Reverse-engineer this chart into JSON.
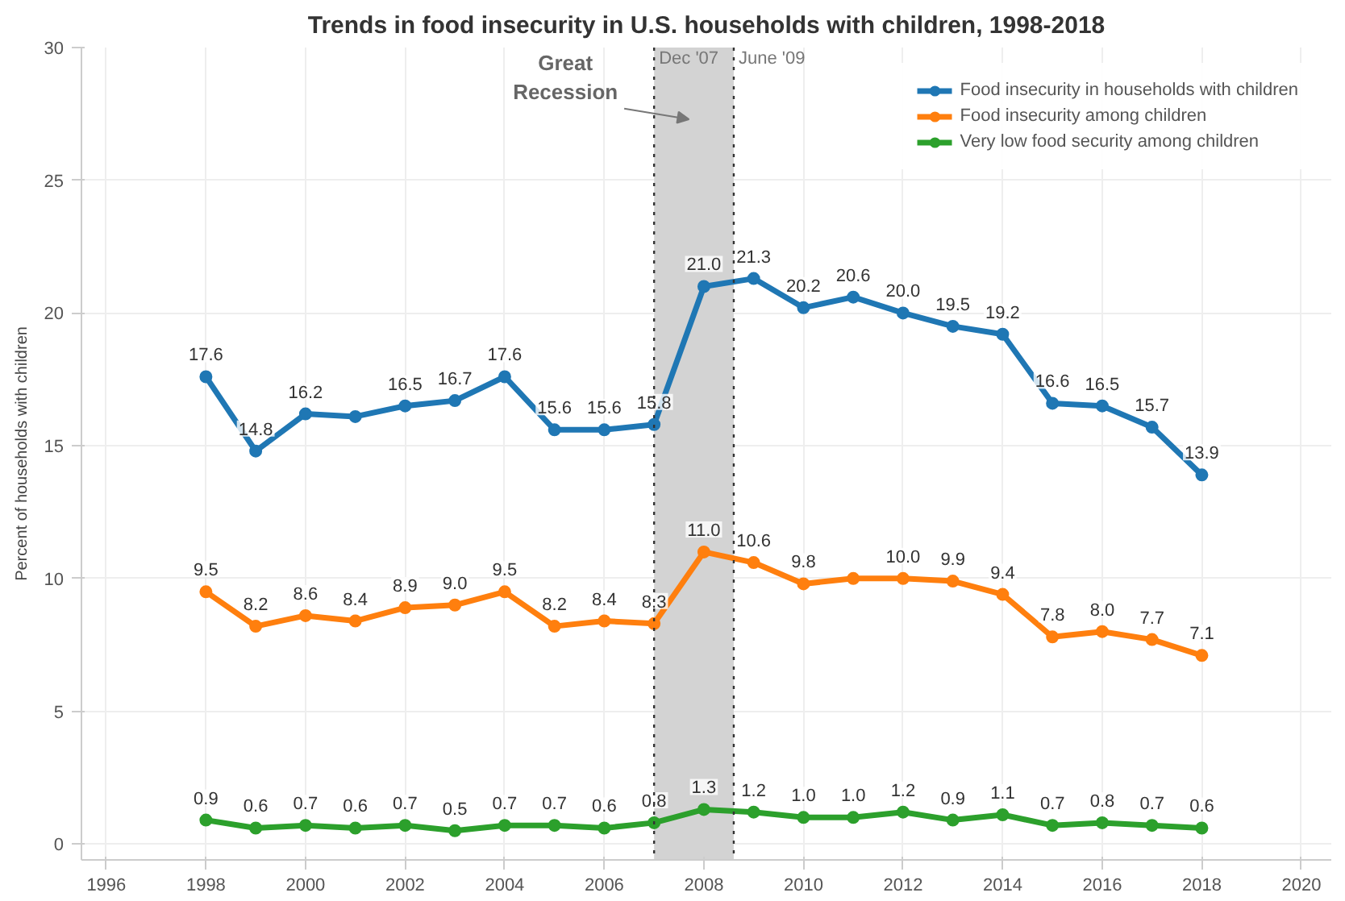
{
  "chart_data": {
    "type": "line",
    "title": "Trends in food insecurity in U.S. households with children, 1998-2018",
    "ylabel": "Percent of households with children",
    "x": [
      1998,
      1999,
      2000,
      2001,
      2002,
      2003,
      2004,
      2005,
      2006,
      2007,
      2008,
      2009,
      2010,
      2011,
      2012,
      2013,
      2014,
      2015,
      2016,
      2017,
      2018
    ],
    "series": [
      {
        "name": "Food insecurity in households with children",
        "color": "#1f77b4",
        "values": [
          17.6,
          14.8,
          16.2,
          16.1,
          16.5,
          16.7,
          17.6,
          15.6,
          15.6,
          15.8,
          21.0,
          21.3,
          20.2,
          20.6,
          20.0,
          19.5,
          19.2,
          16.6,
          16.5,
          15.7,
          13.9
        ],
        "value_labels": [
          "17.6",
          "14.8",
          "16.2",
          null,
          "16.5",
          "16.7",
          "17.6",
          "15.6",
          "15.6",
          "15.8",
          "21.0",
          "21.3",
          "20.2",
          "20.6",
          "20.0",
          "19.5",
          "19.2",
          "16.6",
          "16.5",
          "15.7",
          "13.9"
        ]
      },
      {
        "name": "Food insecurity among children",
        "color": "#ff7f0e",
        "values": [
          9.5,
          8.2,
          8.6,
          8.4,
          8.9,
          9.0,
          9.5,
          8.2,
          8.4,
          8.3,
          11.0,
          10.6,
          9.8,
          10.0,
          10.0,
          9.9,
          9.4,
          7.8,
          8.0,
          7.7,
          7.1
        ],
        "value_labels": [
          "9.5",
          "8.2",
          "8.6",
          "8.4",
          "8.9",
          "9.0",
          "9.5",
          "8.2",
          "8.4",
          "8.3",
          "11.0",
          "10.6",
          "9.8",
          null,
          "10.0",
          "9.9",
          "9.4",
          "7.8",
          "8.0",
          "7.7",
          "7.1"
        ]
      },
      {
        "name": "Very low food security among children",
        "color": "#2ca02c",
        "values": [
          0.9,
          0.6,
          0.7,
          0.6,
          0.7,
          0.5,
          0.7,
          0.7,
          0.6,
          0.8,
          1.3,
          1.2,
          1.0,
          1.0,
          1.2,
          0.9,
          1.1,
          0.7,
          0.8,
          0.7,
          0.6
        ],
        "value_labels": [
          "0.9",
          "0.6",
          "0.7",
          "0.6",
          "0.7",
          "0.5",
          "0.7",
          "0.7",
          "0.6",
          "0.8",
          "1.3",
          "1.2",
          "1.0",
          "1.0",
          "1.2",
          "0.9",
          "1.1",
          "0.7",
          "0.8",
          "0.7",
          "0.6"
        ]
      }
    ],
    "xlim": [
      1995.5,
      2020.6
    ],
    "xticks": [
      1996,
      1998,
      2000,
      2002,
      2004,
      2006,
      2008,
      2010,
      2012,
      2014,
      2016,
      2018,
      2020
    ],
    "ylim": [
      -0.6,
      30
    ],
    "yticks": [
      0,
      5,
      10,
      15,
      20,
      25,
      30
    ],
    "bands": [
      {
        "axis": "x",
        "from": 2007,
        "to": 2008.6,
        "color": "#d3d3d3"
      }
    ],
    "ref_lines": [
      {
        "axis": "x",
        "value": 2007,
        "label": "Dec '07",
        "line_style": "dotted"
      },
      {
        "axis": "x",
        "value": 2008.6,
        "label": "June '09",
        "line_style": "dotted"
      }
    ],
    "annotations": [
      "Great Recession"
    ],
    "grid": true,
    "legend": "top right",
    "marker": "circle",
    "line_style": "solid"
  }
}
